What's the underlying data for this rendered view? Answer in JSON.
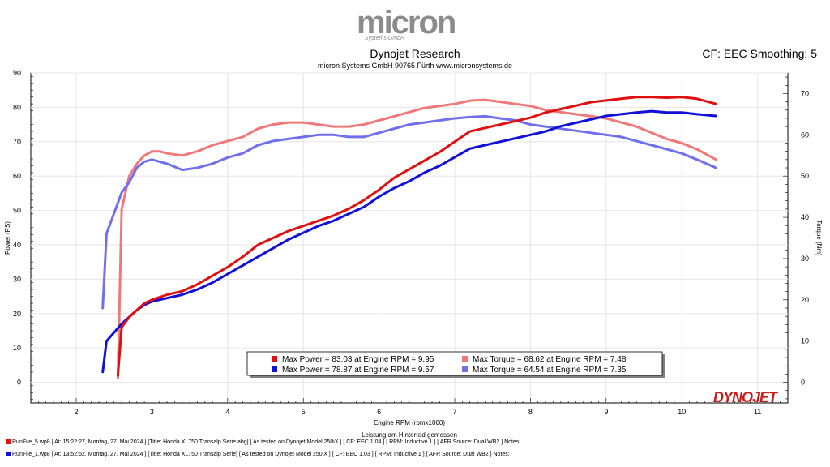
{
  "header": {
    "logo_text": "micron",
    "logo_sub": "Systems GmbH",
    "title": "Dynojet Research",
    "subtitle": "micron Systems GmbH  90765 Fürth www.micronsystems.de",
    "cf_text": "CF: EEC Smoothing: 5"
  },
  "brand": {
    "dynojet": "DYNOJET"
  },
  "colors": {
    "power_run5": "#e01010",
    "power_run1": "#1010d8",
    "torque_run5": "#f07878",
    "torque_run1": "#7070ee",
    "grid": "#e6e6e6",
    "plot_bg": "#ffffff"
  },
  "footer": {
    "line1": "RunFile_5.wp8 [ At:  15:22:27, Montag, 27. Mai 2024 ] [Title:  Honda XL750 Transalp Serie abg]   [ As tested on Dynojet  Model 250iX ] [ CF:  EEC 1.04 ] [ RPM:  Inductive 1 ] [ AFR Source:  Dual  WB2 ] Notes:",
    "line2": "RunFile_1.wp8 [ At:  13:52:52, Montag, 27. Mai 2024 ] [Title:  Honda XL750 Transalp Serie]   [ As tested on Dynojet  Model 250iX ] [ CF:  EEC 1.03 ] [ RPM:  Inductive 1 ] [ AFR Source:  Dual  WB2 ] Notes:"
  },
  "chart_data": {
    "type": "line",
    "xlabel": "Engine RPM (rpmx1000)",
    "xlabel2": "Leistung am Hinterrad gemessen",
    "ylabel_left": "Power (PS)",
    "ylabel_right": "Torque (Nm)",
    "xlim": [
      1.4,
      11.4
    ],
    "ylim_left": [
      -6,
      90
    ],
    "ylim_right": [
      -5,
      75
    ],
    "x_ticks": [
      2,
      3,
      4,
      5,
      6,
      7,
      8,
      9,
      10,
      11
    ],
    "y_left_ticks": [
      0,
      10,
      20,
      30,
      40,
      50,
      60,
      70,
      80,
      90
    ],
    "y_right_ticks": [
      0,
      10,
      20,
      30,
      40,
      50,
      60,
      70
    ],
    "grid": true,
    "legend": [
      {
        "text": "Max Power = 83.03 at Engine RPM = 9.95",
        "series": 0
      },
      {
        "text": "Max Torque = 68.62 at Engine RPM = 7.48",
        "series": 2
      },
      {
        "text": "Max Power = 78.87 at Engine RPM = 9.57",
        "series": 1
      },
      {
        "text": "Max Torque = 64.54 at Engine RPM = 7.35",
        "series": 3
      }
    ],
    "series": [
      {
        "axis": "left",
        "color_key": "power_run5",
        "x": [
          2.55,
          2.6,
          2.7,
          2.8,
          2.9,
          3.0,
          3.2,
          3.4,
          3.6,
          3.8,
          4.0,
          4.2,
          4.4,
          4.6,
          4.8,
          5.0,
          5.2,
          5.4,
          5.6,
          5.8,
          6.0,
          6.2,
          6.4,
          6.6,
          6.8,
          7.0,
          7.2,
          7.4,
          7.6,
          7.8,
          8.0,
          8.2,
          8.4,
          8.6,
          8.8,
          9.0,
          9.2,
          9.4,
          9.6,
          9.8,
          10.0,
          10.2,
          10.45
        ],
        "y": [
          2,
          16,
          19,
          21,
          23,
          24,
          25.5,
          26.5,
          28.5,
          31,
          33.5,
          36.5,
          40,
          42,
          44,
          45.5,
          47,
          48.5,
          50.5,
          53,
          56,
          59.5,
          62,
          64.5,
          67,
          70,
          73,
          74,
          75,
          76,
          77,
          78.5,
          79.5,
          80.5,
          81.5,
          82,
          82.5,
          83,
          83,
          82.8,
          83,
          82.5,
          81
        ]
      },
      {
        "axis": "left",
        "color_key": "power_run1",
        "x": [
          2.35,
          2.4,
          2.5,
          2.6,
          2.7,
          2.8,
          2.9,
          3.0,
          3.2,
          3.4,
          3.6,
          3.8,
          4.0,
          4.2,
          4.4,
          4.6,
          4.8,
          5.0,
          5.2,
          5.4,
          5.6,
          5.8,
          6.0,
          6.2,
          6.4,
          6.6,
          6.8,
          7.0,
          7.2,
          7.4,
          7.6,
          7.8,
          8.0,
          8.2,
          8.4,
          8.6,
          8.8,
          9.0,
          9.2,
          9.4,
          9.6,
          9.8,
          10.0,
          10.2,
          10.45
        ],
        "y": [
          3,
          12,
          14.5,
          17,
          19,
          21,
          22.5,
          23.5,
          24.5,
          25.5,
          27,
          29,
          31.5,
          34,
          36.5,
          39,
          41.5,
          43.5,
          45.5,
          47,
          49,
          51,
          54,
          56.5,
          58.5,
          61,
          63,
          65.5,
          68,
          69,
          70,
          71,
          72,
          73,
          74.5,
          75.5,
          76.5,
          77.5,
          78,
          78.5,
          78.9,
          78.5,
          78.5,
          78,
          77.5
        ]
      },
      {
        "axis": "right",
        "color_key": "torque_run5",
        "x": [
          2.55,
          2.6,
          2.7,
          2.8,
          2.9,
          3.0,
          3.1,
          3.2,
          3.4,
          3.6,
          3.8,
          4.0,
          4.2,
          4.4,
          4.6,
          4.8,
          5.0,
          5.2,
          5.4,
          5.6,
          5.8,
          6.0,
          6.2,
          6.4,
          6.6,
          6.8,
          7.0,
          7.2,
          7.4,
          7.6,
          7.8,
          8.0,
          8.2,
          8.4,
          8.6,
          8.8,
          9.0,
          9.2,
          9.4,
          9.6,
          9.8,
          10.0,
          10.2,
          10.45
        ],
        "y": [
          1,
          42,
          50,
          53,
          55,
          56,
          56,
          55.5,
          55,
          56,
          57.5,
          58.5,
          59.5,
          61.5,
          62.5,
          63,
          63,
          62.5,
          62,
          62,
          62.5,
          63.5,
          64.5,
          65.5,
          66.5,
          67,
          67.5,
          68.3,
          68.5,
          68,
          67.5,
          67,
          66,
          65.5,
          65,
          64.5,
          64,
          63,
          62,
          60.5,
          59,
          58,
          56.5,
          54
        ]
      },
      {
        "axis": "right",
        "color_key": "torque_run1",
        "x": [
          2.35,
          2.4,
          2.5,
          2.6,
          2.7,
          2.8,
          2.9,
          3.0,
          3.2,
          3.4,
          3.6,
          3.8,
          4.0,
          4.2,
          4.4,
          4.6,
          4.8,
          5.0,
          5.2,
          5.4,
          5.6,
          5.8,
          6.0,
          6.2,
          6.4,
          6.6,
          6.8,
          7.0,
          7.2,
          7.4,
          7.6,
          7.8,
          8.0,
          8.2,
          8.4,
          8.6,
          8.8,
          9.0,
          9.2,
          9.4,
          9.6,
          9.8,
          10.0,
          10.2,
          10.45
        ],
        "y": [
          18,
          36,
          41,
          46,
          48.5,
          52,
          53.5,
          54,
          53,
          51.5,
          52,
          53,
          54.5,
          55.5,
          57.5,
          58.5,
          59,
          59.5,
          60,
          60,
          59.5,
          59.5,
          60.5,
          61.5,
          62.5,
          63,
          63.5,
          64,
          64.3,
          64.5,
          64,
          63.5,
          62.5,
          62,
          61.5,
          61,
          60.5,
          60,
          59.5,
          58.5,
          57.5,
          56.5,
          55.5,
          54,
          52
        ]
      }
    ]
  }
}
